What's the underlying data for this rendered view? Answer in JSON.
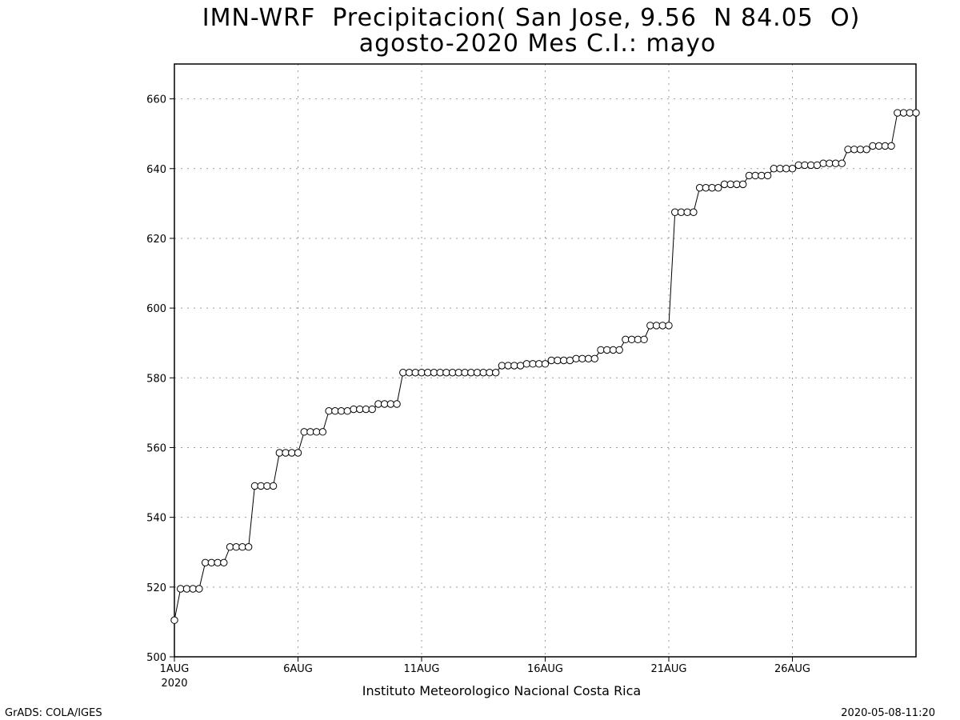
{
  "chart_data": {
    "type": "line",
    "title": "IMN-WRF  Precipitacion( San Jose, 9.56  N 84.05  O)",
    "subtitle": "agosto-2020 Mes C.I.: mayo",
    "xlabel": "Instituto Meteorologico Nacional Costa Rica",
    "ylabel": "",
    "ylim": [
      500,
      670
    ],
    "yticks": [
      500,
      520,
      540,
      560,
      580,
      600,
      620,
      640,
      660
    ],
    "xlim": [
      1,
      31
    ],
    "xticks": [
      {
        "day": 1,
        "label": "1AUG",
        "sublabel": "2020"
      },
      {
        "day": 6,
        "label": "6AUG",
        "sublabel": ""
      },
      {
        "day": 11,
        "label": "11AUG",
        "sublabel": ""
      },
      {
        "day": 16,
        "label": "16AUG",
        "sublabel": ""
      },
      {
        "day": 21,
        "label": "21AUG",
        "sublabel": ""
      },
      {
        "day": 26,
        "label": "26AUG",
        "sublabel": ""
      }
    ],
    "grid": true,
    "marker": "open-circle",
    "x_step_days": 0.25,
    "series": [
      {
        "values": [
          510.5,
          519.5,
          519.5,
          519.5,
          519.5,
          527,
          527,
          527,
          527,
          531.5,
          531.5,
          531.5,
          531.5,
          549,
          549,
          549,
          549,
          558.5,
          558.5,
          558.5,
          558.5,
          564.5,
          564.5,
          564.5,
          564.5,
          570.5,
          570.5,
          570.5,
          570.5,
          571,
          571,
          571,
          571,
          572.5,
          572.5,
          572.5,
          572.5,
          581.5,
          581.5,
          581.5,
          581.5,
          581.5,
          581.5,
          581.5,
          581.5,
          581.5,
          581.5,
          581.5,
          581.5,
          581.5,
          581.5,
          581.5,
          581.5,
          583.5,
          583.5,
          583.5,
          583.5,
          584,
          584,
          584,
          584,
          585,
          585,
          585,
          585,
          585.5,
          585.5,
          585.5,
          585.5,
          588,
          588,
          588,
          588,
          591,
          591,
          591,
          591,
          595,
          595,
          595,
          595,
          627.5,
          627.5,
          627.5,
          627.5,
          634.5,
          634.5,
          634.5,
          634.5,
          635.5,
          635.5,
          635.5,
          635.5,
          638,
          638,
          638,
          638,
          640,
          640,
          640,
          640,
          641,
          641,
          641,
          641,
          641.5,
          641.5,
          641.5,
          641.5,
          645.5,
          645.5,
          645.5,
          645.5,
          646.5,
          646.5,
          646.5,
          646.5,
          656,
          656,
          656,
          656
        ]
      }
    ]
  },
  "footer": {
    "left": "GrADS: COLA/IGES",
    "right": "2020-05-08-11:20"
  }
}
